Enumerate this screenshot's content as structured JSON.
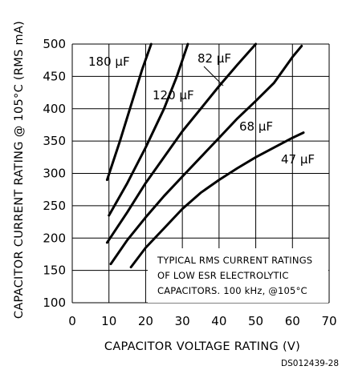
{
  "chart_data": {
    "type": "line",
    "xlabel": "CAPACITOR VOLTAGE RATING (V)",
    "ylabel": "CAPACITOR CURRENT RATING @ 105°C (RMS mA)",
    "xlim": [
      0,
      70
    ],
    "ylim": [
      100,
      500
    ],
    "xticks": [
      "0",
      "10",
      "20",
      "30",
      "40",
      "50",
      "60",
      "70"
    ],
    "yticks": [
      "100",
      "150",
      "200",
      "250",
      "300",
      "350",
      "400",
      "450",
      "500"
    ],
    "grid": true,
    "series": [
      {
        "name": "180 µF",
        "x": [
          9.5,
          13,
          16,
          19,
          21.5
        ],
        "y": [
          290,
          350,
          405,
          460,
          500
        ]
      },
      {
        "name": "120 µF",
        "x": [
          10,
          15,
          20,
          25,
          28.5,
          31.5
        ],
        "y": [
          235,
          285,
          340,
          400,
          450,
          500
        ]
      },
      {
        "name": "82 µF",
        "x": [
          9.5,
          15,
          20,
          25,
          30,
          35,
          40,
          45,
          50
        ],
        "y": [
          193,
          240,
          285,
          325,
          365,
          400,
          435,
          468,
          500
        ]
      },
      {
        "name": "68 µF",
        "x": [
          10.5,
          15,
          20,
          25,
          30,
          35,
          40,
          45,
          50,
          55,
          60,
          62.5
        ],
        "y": [
          160,
          197,
          232,
          265,
          295,
          325,
          355,
          385,
          412,
          440,
          480,
          497
        ]
      },
      {
        "name": "47 µF",
        "x": [
          16,
          20,
          25,
          30,
          35,
          40,
          45,
          50,
          55,
          60,
          63
        ],
        "y": [
          155,
          185,
          215,
          245,
          270,
          290,
          308,
          325,
          340,
          355,
          363
        ]
      }
    ],
    "labels": [
      "180 µF",
      "120 µF",
      "82 µF",
      "68 µF",
      "47 µF"
    ],
    "annotation": [
      "TYPICAL RMS CURRENT RATINGS",
      "OF LOW ESR ELECTROLYTIC",
      "CAPACITORS. 100 kHz, @105°C"
    ],
    "code": "DS012439-28"
  }
}
